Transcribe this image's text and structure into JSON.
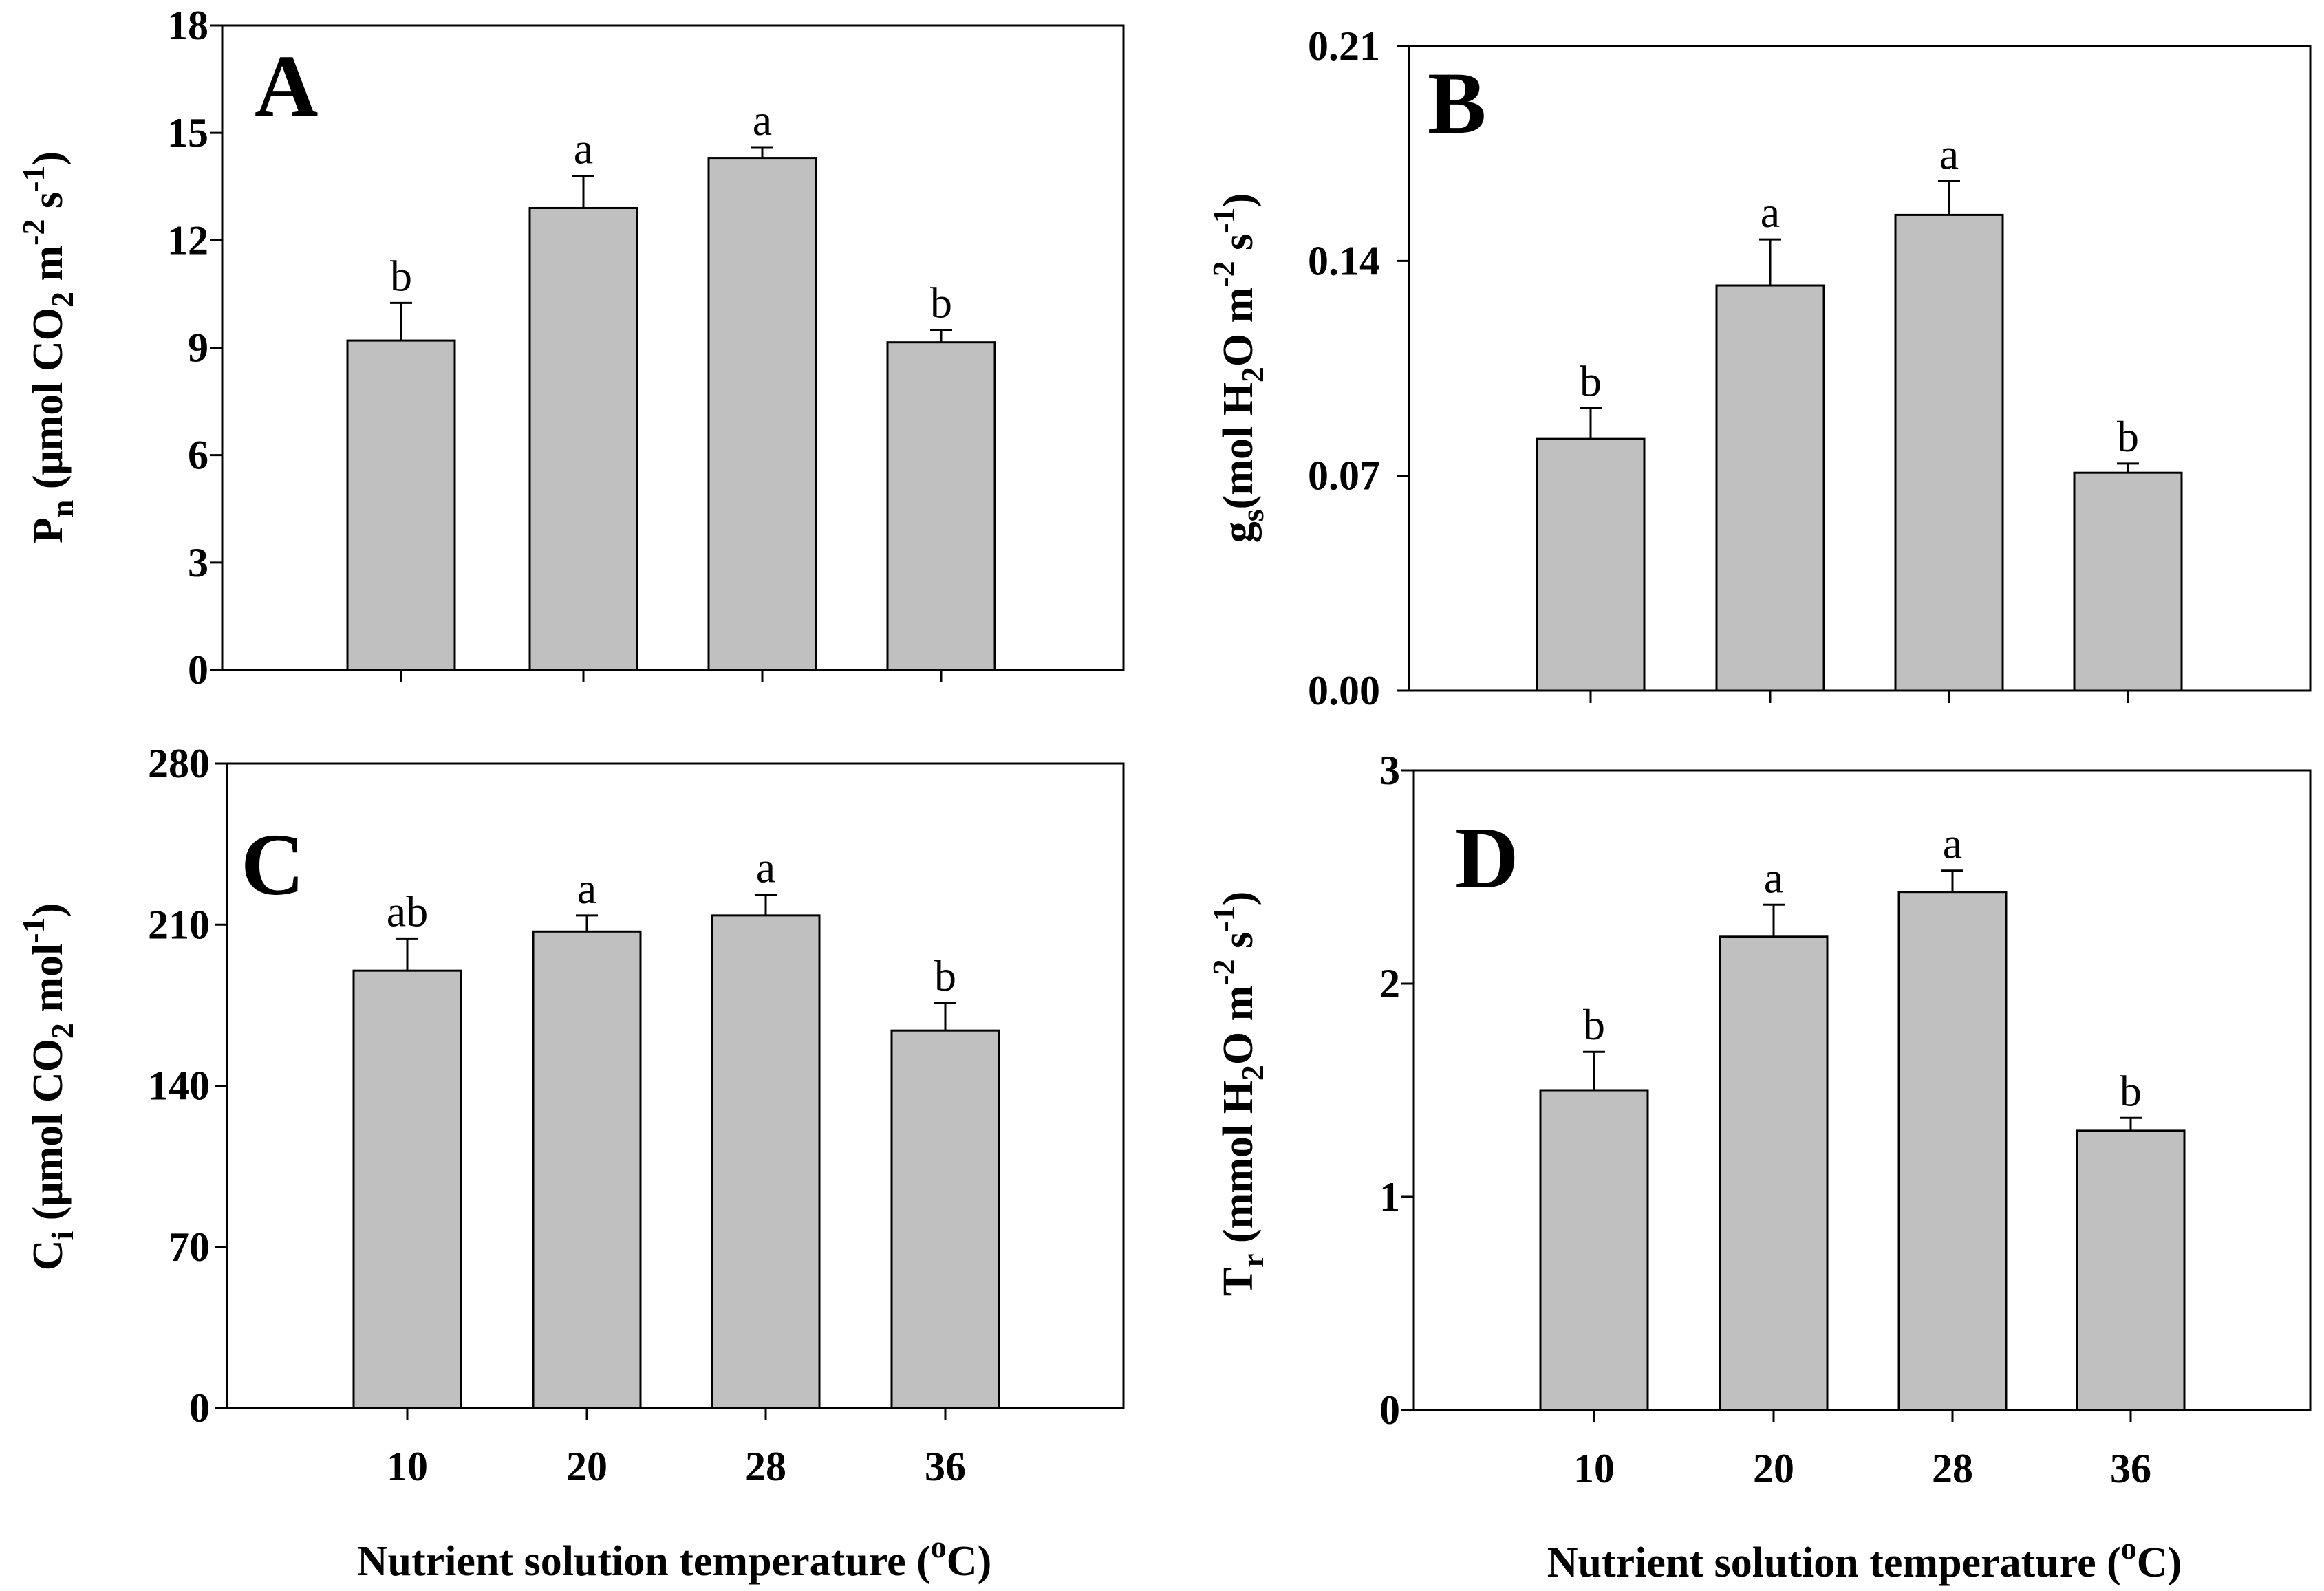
{
  "colors": {
    "bar_fill": "#c0c0c0",
    "line": "#000000",
    "background": "#ffffff"
  },
  "shared_xlabel": "Nutrient solution temperature (oC)",
  "chart_data": [
    {
      "type": "bar",
      "panel": "A",
      "categories": [
        "10",
        "20",
        "28",
        "36"
      ],
      "values": [
        9.2,
        12.9,
        14.3,
        9.15
      ],
      "errors": [
        1.05,
        0.9,
        0.3,
        0.35
      ],
      "significance": [
        "b",
        "a",
        "a",
        "b"
      ],
      "ylim": [
        0,
        18
      ],
      "yticks": [
        "0",
        "3",
        "6",
        "9",
        "12",
        "15",
        "18"
      ],
      "ylabel": "Pn (μmol CO2 m-2 s-1)",
      "xlabel": "",
      "show_xtick_labels": false
    },
    {
      "type": "bar",
      "panel": "B",
      "categories": [
        "10",
        "20",
        "28",
        "36"
      ],
      "values": [
        0.082,
        0.132,
        0.155,
        0.071
      ],
      "errors": [
        0.01,
        0.015,
        0.011,
        0.003
      ],
      "significance": [
        "b",
        "a",
        "a",
        "b"
      ],
      "ylim": [
        0,
        0.21
      ],
      "yticks": [
        "0.00",
        "0.07",
        "0.14",
        "0.21"
      ],
      "ylabel": "gs(mol H2O m-2 s-1)",
      "xlabel": "",
      "show_xtick_labels": false
    },
    {
      "type": "bar",
      "panel": "C",
      "categories": [
        "10",
        "20",
        "28",
        "36"
      ],
      "values": [
        190,
        207,
        214,
        164
      ],
      "errors": [
        14,
        7,
        9,
        12
      ],
      "significance": [
        "ab",
        "a",
        "a",
        "b"
      ],
      "ylim": [
        0,
        280
      ],
      "yticks": [
        "0",
        "70",
        "140",
        "210",
        "280"
      ],
      "ylabel": "Ci (μmol CO2 mol-1)",
      "xlabel": "Nutrient solution temperature (oC)",
      "show_xtick_labels": true
    },
    {
      "type": "bar",
      "panel": "D",
      "categories": [
        "10",
        "20",
        "28",
        "36"
      ],
      "values": [
        1.5,
        2.22,
        2.43,
        1.31
      ],
      "errors": [
        0.18,
        0.15,
        0.1,
        0.06
      ],
      "significance": [
        "b",
        "a",
        "a",
        "b"
      ],
      "ylim": [
        0,
        3
      ],
      "yticks": [
        "0",
        "1",
        "2",
        "3"
      ],
      "ylabel": "Tr (mmol H2O m-2 s-1)",
      "xlabel": "Nutrient solution temperature (oC)",
      "show_xtick_labels": true
    }
  ]
}
